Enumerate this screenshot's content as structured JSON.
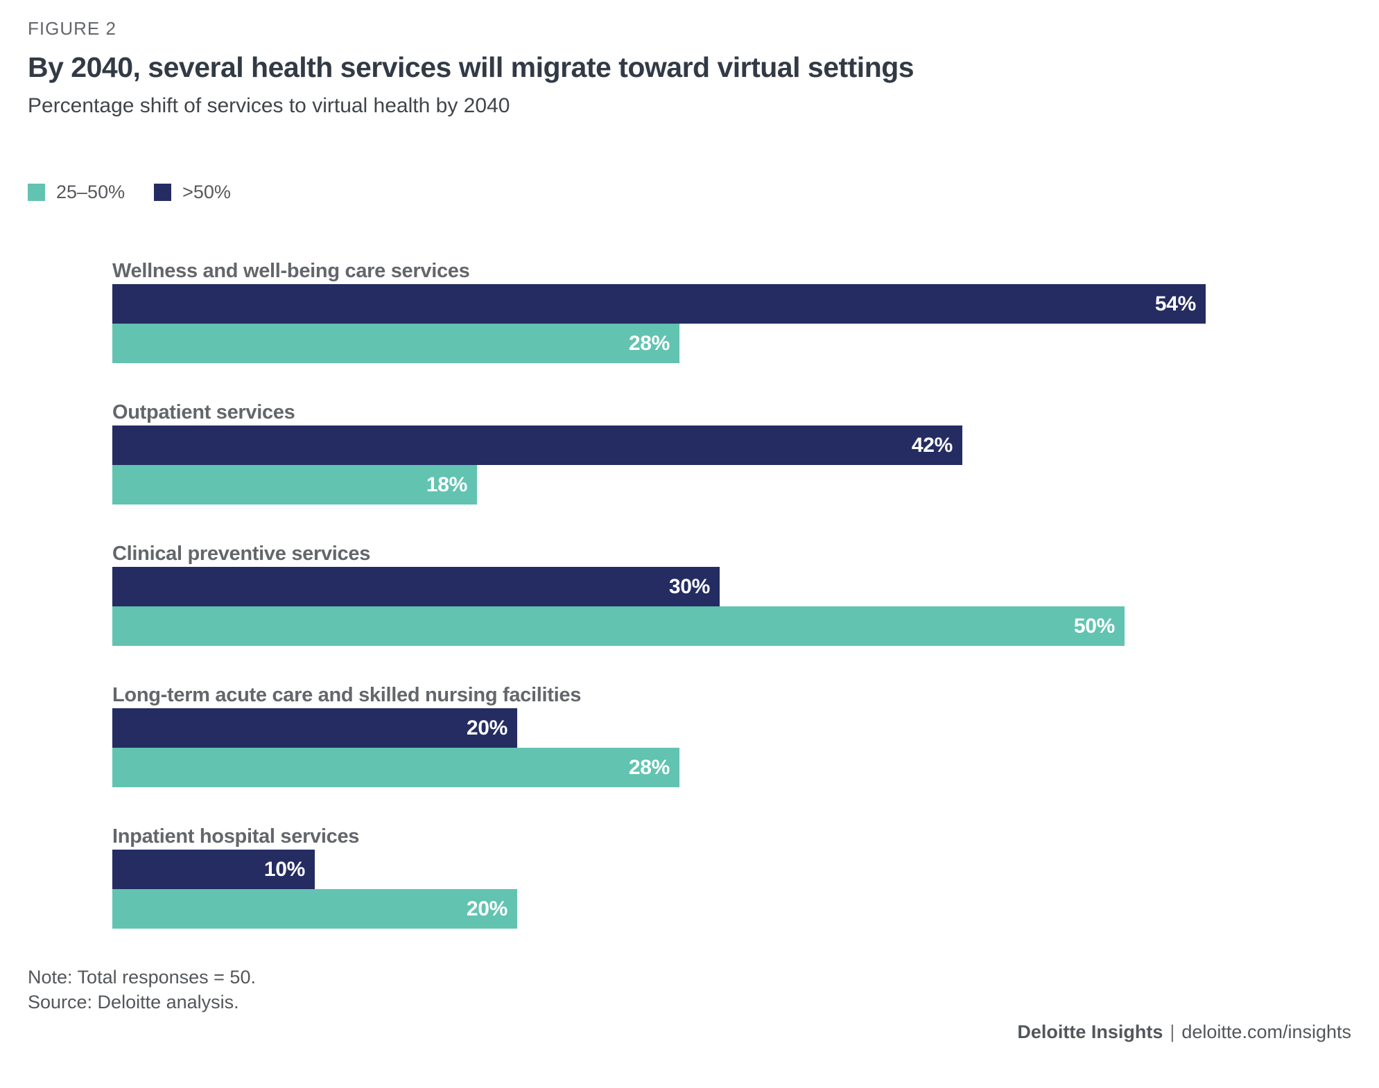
{
  "figure_label": "FIGURE 2",
  "title": "By 2040, several health services will migrate toward virtual settings",
  "subtitle": "Percentage shift of services to virtual health by 2040",
  "colors": {
    "teal": "#62c3b1",
    "navy": "#242c62",
    "title_text": "#323a45",
    "label_text": "#63666a"
  },
  "legend": [
    {
      "label": "25–50%",
      "color": "#62c3b1"
    },
    {
      "label": ">50%",
      "color": "#242c62"
    }
  ],
  "chart_data": {
    "type": "bar",
    "orientation": "horizontal",
    "title": "Percentage shift of services to virtual health by 2040",
    "categories": [
      "Wellness and well-being care services",
      "Outpatient services",
      "Clinical preventive services",
      "Long-term acute care and skilled nursing facilities",
      "Inpatient hospital services"
    ],
    "series": [
      {
        "name": ">50%",
        "color": "#242c62",
        "values": [
          54,
          42,
          30,
          20,
          10
        ]
      },
      {
        "name": "25–50%",
        "color": "#62c3b1",
        "values": [
          28,
          18,
          50,
          28,
          20
        ]
      }
    ],
    "value_suffix": "%",
    "xlim": [
      0,
      61
    ],
    "grid": false,
    "legend_position": "top-left",
    "value_labels": "inside-end"
  },
  "notes": {
    "note": "Note: Total responses = 50.",
    "source": "Source: Deloitte analysis."
  },
  "footer": {
    "brand": "Deloitte Insights",
    "separator": "|",
    "url": "deloitte.com/insights"
  }
}
